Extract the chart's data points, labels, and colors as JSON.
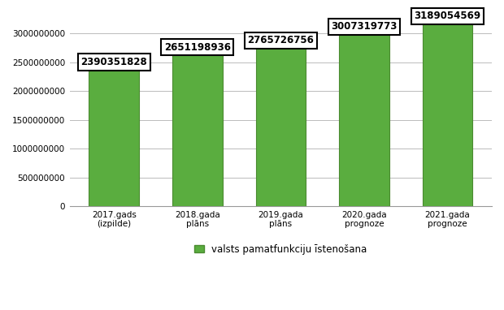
{
  "categories": [
    "2017.gads\n(izpilde)",
    "2018.gada\nplāns",
    "2019.gada\nplāns",
    "2020.gada\nprognoze",
    "2021.gada\nprognoze"
  ],
  "values": [
    2390351828,
    2651198936,
    2765726756,
    3007319773,
    3189054569
  ],
  "bar_color": "#5aad3f",
  "bar_edgecolor": "#4a8a30",
  "label_texts": [
    "2390351828",
    "2651198936",
    "2765726756",
    "3007319773",
    "3189054569"
  ],
  "legend_label": "valsts pamatfunkciju īstenošana",
  "ylim": [
    0,
    3300000000
  ],
  "yticks": [
    0,
    500000000,
    1000000000,
    1500000000,
    2000000000,
    2500000000,
    3000000000
  ],
  "ytick_labels": [
    "0",
    "500000000",
    "1000000000",
    "1500000000",
    "2000000000",
    "2500000000",
    "3000000000"
  ],
  "background_color": "#ffffff",
  "grid_color": "#bbbbbb",
  "bar_width": 0.6,
  "label_fontsize": 8.5,
  "tick_fontsize": 7.5,
  "legend_fontsize": 8.5,
  "label_box_facecolor": "#ffffff",
  "label_box_edgecolor": "#000000",
  "label_fontweight": "bold"
}
